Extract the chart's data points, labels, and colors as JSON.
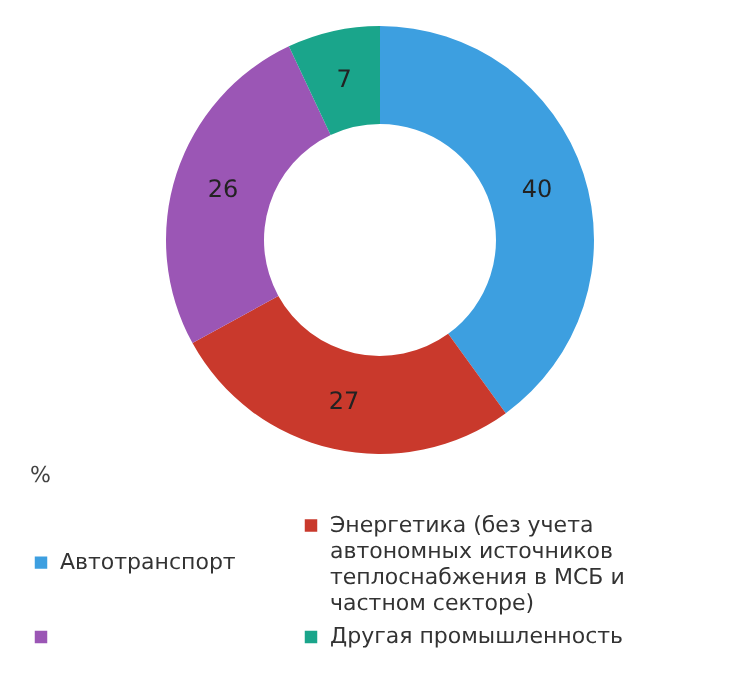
{
  "chart_data": {
    "type": "donut",
    "legend_title": "%",
    "legend": "bottom",
    "data_labels": true,
    "categories": [
      "Автотранспорт",
      "Энергетика (без учета автономных источников теплоснабжения в МСБ и частном секторе)",
      null,
      "Другая промышленность"
    ],
    "values": [
      40,
      27,
      26,
      7
    ],
    "colors": [
      "#3d9fe0",
      "#c9392c",
      "#9b56b5",
      "#1aa58b"
    ]
  }
}
